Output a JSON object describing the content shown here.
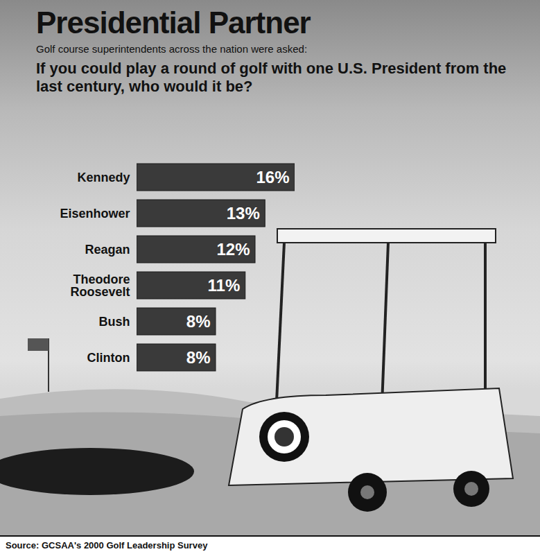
{
  "chart_data": {
    "type": "bar",
    "orientation": "horizontal",
    "title": "Presidential Partner",
    "subtitle": "Golf course superintendents across the nation were asked:",
    "annotations": [
      "If you could play a round of golf with one U.S. President from the last century, who would it be?"
    ],
    "source": "Source: GCSAA's 2000 Golf Leadership Survey",
    "categories": [
      "Kennedy",
      "Eisenhower",
      "Reagan",
      "Theodore Roosevelt",
      "Bush",
      "Clinton"
    ],
    "values": [
      16,
      13,
      12,
      11,
      8,
      8
    ],
    "value_labels": [
      "16%",
      "13%",
      "12%",
      "11%",
      "8%",
      "8%"
    ],
    "color": "#3a3a3a",
    "data_labels": true,
    "tick_labels": "y"
  }
}
